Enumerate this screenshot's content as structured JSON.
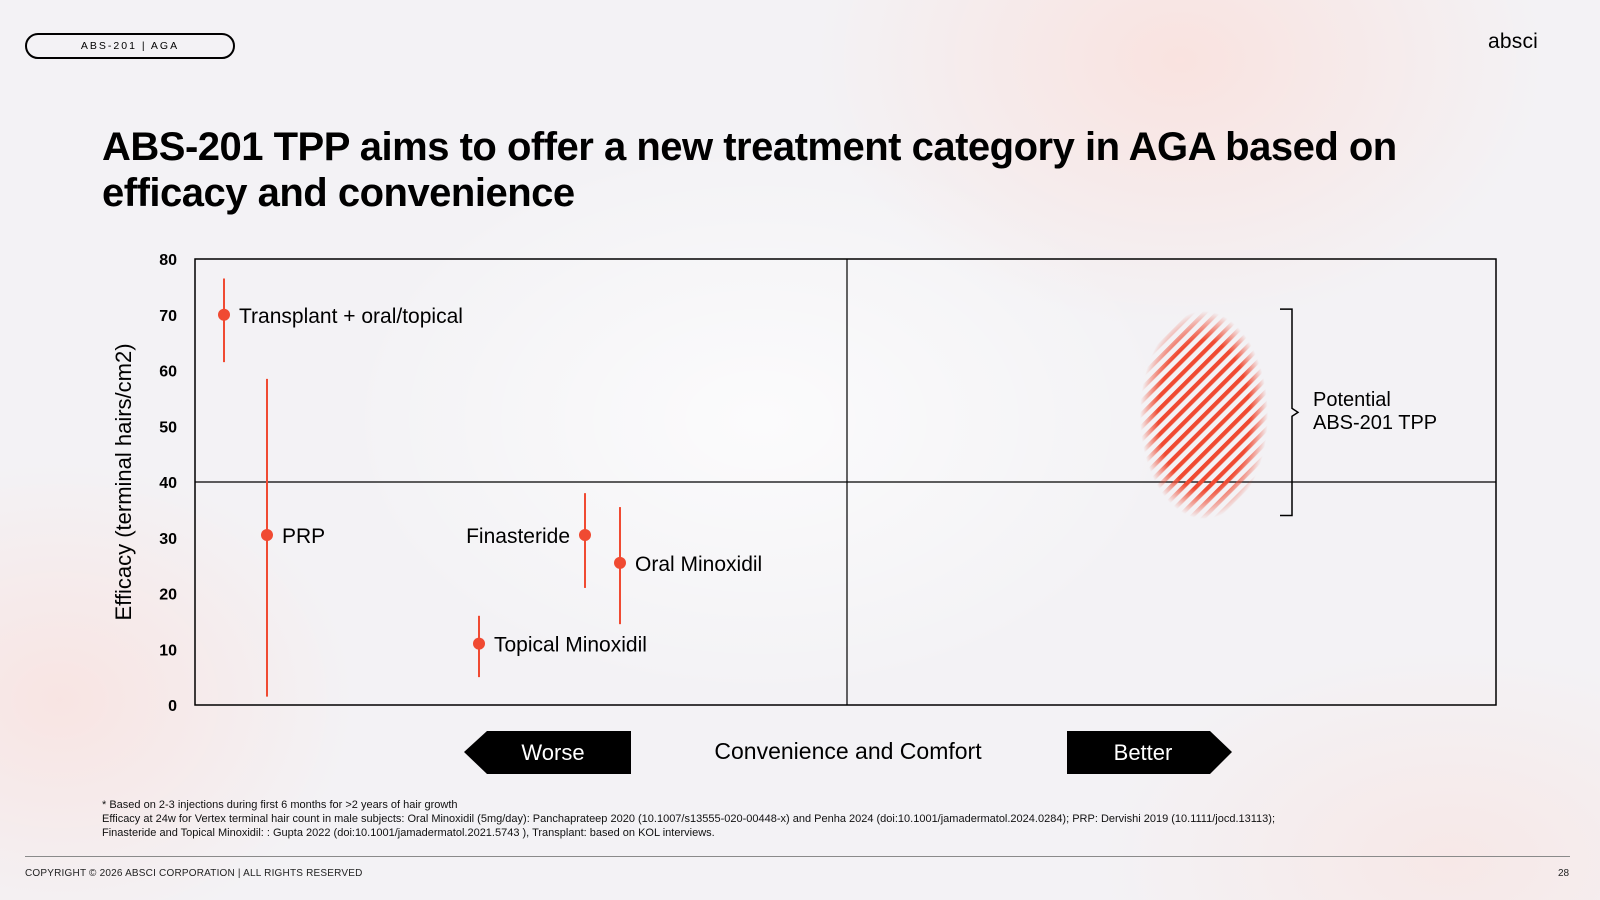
{
  "header": {
    "tag": "ABS-201 | AGA",
    "logo_text": "absci"
  },
  "title": "ABS-201 TPP aims to offer a new treatment category in AGA based on efficacy and convenience",
  "chart_data": {
    "type": "scatter",
    "ylabel": "Efficacy (terminal hairs/cm2)",
    "xlabel": "Convenience and Comfort",
    "ylim": [
      0,
      80
    ],
    "yticks": [
      "0",
      "10",
      "20",
      "30",
      "40",
      "50",
      "60",
      "70",
      "80"
    ],
    "x_axis": "unlabeled ordinal scale (worse to better)",
    "quadrant_lines": {
      "y": 40,
      "x": "midpoint"
    },
    "grid": false,
    "accent_color": "#f04a32",
    "points": [
      {
        "name": "Transplant + oral/topical",
        "y": 70,
        "y_low": 61.5,
        "y_high": 76.5,
        "label_side": "right"
      },
      {
        "name": "PRP",
        "y": 30.5,
        "y_low": 1.5,
        "y_high": 58.5,
        "label_side": "right"
      },
      {
        "name": "Finasteride",
        "y": 30.5,
        "y_low": 21,
        "y_high": 38,
        "label_side": "left"
      },
      {
        "name": "Oral Minoxidil",
        "y": 25.5,
        "y_low": 14.5,
        "y_high": 35.5,
        "label_side": "right"
      },
      {
        "name": "Topical Minoxidil",
        "y": 11,
        "y_low": 5,
        "y_high": 16,
        "label_side": "right"
      }
    ],
    "target_region": {
      "label": [
        "Potential",
        "ABS-201 TPP"
      ],
      "y_low": 34,
      "y_high": 71,
      "fill": "hatched"
    },
    "arrows": {
      "left": "Worse",
      "right": "Better"
    }
  },
  "footnotes": [
    "* Based on 2-3 injections during first 6 months for >2 years of hair growth",
    "Efficacy at 24w for Vertex terminal hair count in male subjects: Oral Minoxidil (5mg/day): Panchaprateep 2020 (10.1007/s13555-020-00448-x) and Penha 2024 (doi:10.1001/jamadermatol.2024.0284); PRP: Dervishi 2019 (10.1111/jocd.13113);",
    "Finasteride and Topical Minoxidil: : Gupta 2022 (doi:10.1001/jamadermatol.2021.5743 ), Transplant: based on KOL interviews."
  ],
  "footer": {
    "copyright": "COPYRIGHT © 2026 ABSCI CORPORATION | ALL RIGHTS RESERVED",
    "page": "28"
  }
}
